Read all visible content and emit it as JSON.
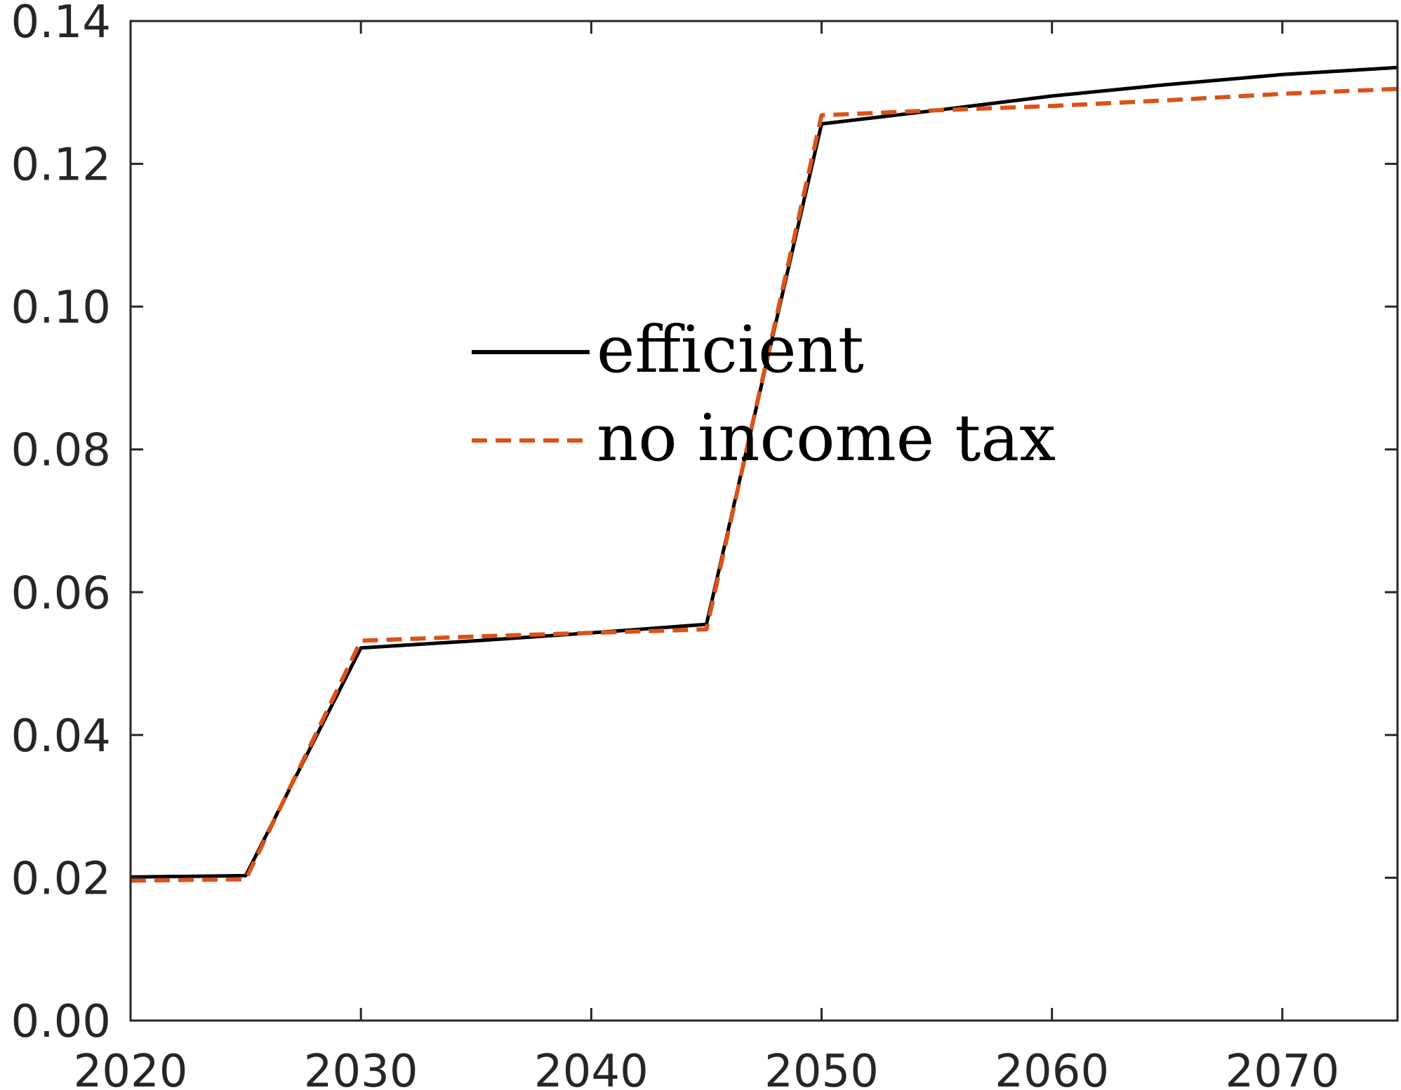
{
  "chart_data": {
    "type": "line",
    "x_ticks": [
      2020,
      2030,
      2040,
      2050,
      2060,
      2070
    ],
    "x_tick_labels": [
      "2020",
      "2030",
      "2040",
      "2050",
      "2060",
      "2070"
    ],
    "y_ticks": [
      0,
      0.02,
      0.04,
      0.06,
      0.08,
      0.1,
      0.12,
      0.14
    ],
    "y_tick_labels": [
      "0.00",
      "0.02",
      "0.04",
      "0.06",
      "0.08",
      "0.10",
      "0.12",
      "0.14"
    ],
    "xlim": [
      2020,
      2075
    ],
    "ylim": [
      0,
      0.14
    ],
    "grid": false,
    "legend_position": "center",
    "series": [
      {
        "name": "efficient",
        "color": "#000000",
        "style": "solid",
        "x": [
          2020,
          2025,
          2030,
          2035,
          2040,
          2045,
          2050,
          2055,
          2060,
          2065,
          2070,
          2075
        ],
        "y": [
          0.0201,
          0.0203,
          0.0522,
          0.0532,
          0.0543,
          0.0555,
          0.1256,
          0.1275,
          0.1295,
          0.1311,
          0.1325,
          0.1335
        ]
      },
      {
        "name": "no income tax",
        "color": "#D95319",
        "style": "dashed",
        "x": [
          2020,
          2025,
          2030,
          2035,
          2040,
          2045,
          2050,
          2055,
          2060,
          2065,
          2070,
          2075
        ],
        "y": [
          0.0196,
          0.0198,
          0.0532,
          0.0538,
          0.0543,
          0.0548,
          0.1268,
          0.1275,
          0.1281,
          0.1289,
          0.1298,
          0.1305
        ]
      }
    ]
  }
}
